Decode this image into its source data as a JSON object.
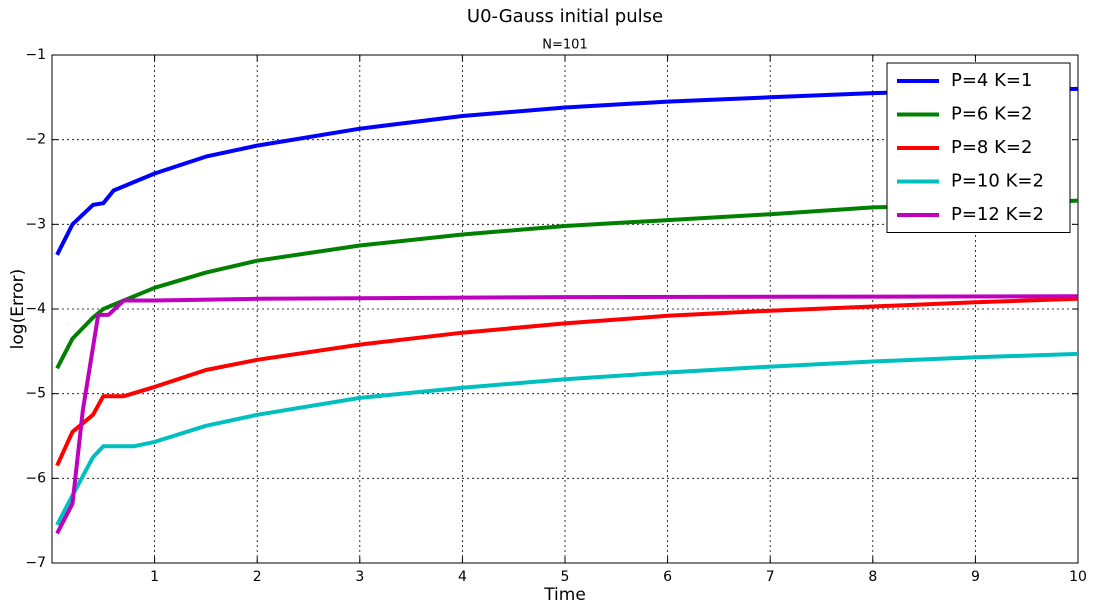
{
  "chart_data": {
    "type": "line",
    "title": "U0-Gauss initial pulse",
    "subtitle": "N=101",
    "x_label": "Time",
    "y_label": "log(Error)",
    "xlim": [
      0,
      10
    ],
    "xticks": [
      1,
      2,
      3,
      4,
      5,
      6,
      7,
      8,
      9,
      10
    ],
    "ylim": [
      -7,
      -1
    ],
    "yticks": [
      {
        "value": -7,
        "label": "−7"
      },
      {
        "value": -6,
        "label": "−6"
      },
      {
        "value": -5,
        "label": "−5"
      },
      {
        "value": -4,
        "label": "−4"
      },
      {
        "value": -3,
        "label": "−3"
      },
      {
        "value": -2,
        "label": "−2"
      },
      {
        "value": -1,
        "label": "−1"
      }
    ],
    "grid": true,
    "legend": "upper right",
    "series": [
      {
        "name": "P=4 K=1",
        "color": "#0000ff",
        "x": [
          0.05,
          0.2,
          0.4,
          0.5,
          0.6,
          0.8,
          1,
          1.5,
          2,
          3,
          4,
          5,
          6,
          7,
          8,
          9,
          10
        ],
        "values": [
          -3.36,
          -3.0,
          -2.77,
          -2.75,
          -2.6,
          -2.5,
          -2.4,
          -2.2,
          -2.07,
          -1.87,
          -1.72,
          -1.62,
          -1.55,
          -1.5,
          -1.45,
          -1.42,
          -1.4
        ]
      },
      {
        "name": "P=6 K=2",
        "color": "#008000",
        "x": [
          0.05,
          0.2,
          0.4,
          0.5,
          0.7,
          1,
          1.5,
          2,
          3,
          4,
          5,
          6,
          7,
          8,
          9,
          10
        ],
        "values": [
          -4.7,
          -4.35,
          -4.1,
          -4.0,
          -3.9,
          -3.75,
          -3.57,
          -3.43,
          -3.25,
          -3.12,
          -3.02,
          -2.95,
          -2.88,
          -2.8,
          -2.77,
          -2.72
        ]
      },
      {
        "name": "P=8 K=2",
        "color": "#ff0000",
        "x": [
          0.05,
          0.2,
          0.4,
          0.5,
          0.7,
          1,
          1.5,
          2,
          3,
          4,
          5,
          6,
          7,
          8,
          9,
          10
        ],
        "values": [
          -5.85,
          -5.45,
          -5.25,
          -5.03,
          -5.03,
          -4.92,
          -4.72,
          -4.6,
          -4.42,
          -4.28,
          -4.17,
          -4.08,
          -4.02,
          -3.97,
          -3.92,
          -3.88
        ]
      },
      {
        "name": "P=10 K=2",
        "color": "#00bfbf",
        "x": [
          0.05,
          0.2,
          0.4,
          0.5,
          0.8,
          1,
          1.5,
          2,
          3,
          4,
          5,
          6,
          7,
          8,
          9,
          10
        ],
        "values": [
          -6.55,
          -6.2,
          -5.75,
          -5.62,
          -5.62,
          -5.57,
          -5.38,
          -5.25,
          -5.05,
          -4.93,
          -4.83,
          -4.75,
          -4.68,
          -4.62,
          -4.57,
          -4.53
        ]
      },
      {
        "name": "P=12 K=2",
        "color": "#bf00bf",
        "x": [
          0.05,
          0.2,
          0.3,
          0.45,
          0.55,
          0.7,
          1,
          2,
          5,
          10
        ],
        "values": [
          -6.65,
          -6.3,
          -5.2,
          -4.07,
          -4.07,
          -3.9,
          -3.9,
          -3.88,
          -3.86,
          -3.85
        ]
      }
    ]
  }
}
